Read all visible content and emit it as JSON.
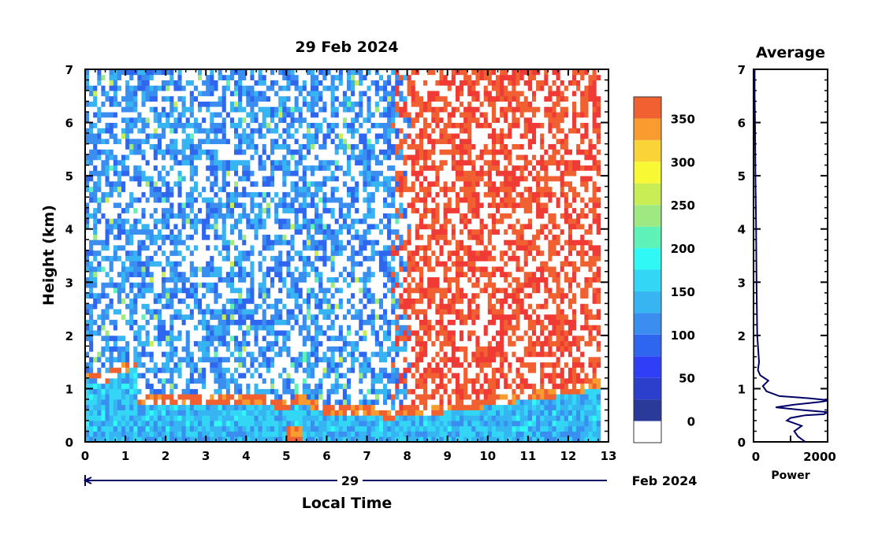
{
  "chart_data": [
    {
      "type": "heatmap",
      "title": "29 Feb 2024",
      "xlabel": "Local Time",
      "ylabel": "Height (km)",
      "xlim": [
        0,
        13
      ],
      "ylim": [
        0,
        7
      ],
      "x_ticks": [
        "0",
        "1",
        "2",
        "3",
        "4",
        "5",
        "6",
        "7",
        "8",
        "9",
        "10",
        "11",
        "12",
        "13"
      ],
      "y_ticks": [
        "0",
        "1",
        "2",
        "3",
        "4",
        "5",
        "6",
        "7"
      ],
      "date_bar": {
        "day": "29",
        "month_year": "Feb 2024"
      },
      "data_extent_hours": [
        0,
        12.8
      ],
      "colorbar": {
        "ticks": [
          "0",
          "50",
          "100",
          "150",
          "200",
          "250",
          "300",
          "350"
        ],
        "range": [
          -25,
          375
        ],
        "bins": [
          {
            "from": -25,
            "to": 0,
            "color": "#ffffff"
          },
          {
            "from": 0,
            "to": 25,
            "color": "#2a3a9a"
          },
          {
            "from": 25,
            "to": 50,
            "color": "#2c3fcc"
          },
          {
            "from": 50,
            "to": 75,
            "color": "#2f3ff5"
          },
          {
            "from": 75,
            "to": 100,
            "color": "#2f66ef"
          },
          {
            "from": 100,
            "to": 125,
            "color": "#3a8ef0"
          },
          {
            "from": 125,
            "to": 150,
            "color": "#37b4f2"
          },
          {
            "from": 150,
            "to": 175,
            "color": "#33d6f5"
          },
          {
            "from": 175,
            "to": 200,
            "color": "#30f8f4"
          },
          {
            "from": 200,
            "to": 225,
            "color": "#5ef2b8"
          },
          {
            "from": 225,
            "to": 250,
            "color": "#9ee982"
          },
          {
            "from": 250,
            "to": 275,
            "color": "#c9ee55"
          },
          {
            "from": 275,
            "to": 300,
            "color": "#f8f834"
          },
          {
            "from": 300,
            "to": 325,
            "color": "#f9d438"
          },
          {
            "from": 325,
            "to": 350,
            "color": "#f89c30"
          },
          {
            "from": 350,
            "to": 375,
            "color": "#f06030"
          },
          {
            "from": 375,
            "to": 400,
            "color": "#f03a35"
          }
        ]
      },
      "layer_top_km": {
        "x": [
          0,
          0.5,
          0.9,
          1.25,
          1.3,
          2.3,
          3.0,
          4.0,
          4.5,
          5.0,
          5.3,
          5.7,
          6.0,
          7.0,
          7.5,
          8.0,
          8.5,
          9.0,
          9.5,
          10.0,
          10.5,
          11.0,
          11.5,
          12.0,
          12.8
        ],
        "y": [
          1.3,
          1.25,
          1.4,
          1.5,
          0.8,
          0.8,
          0.8,
          0.82,
          0.8,
          0.72,
          0.85,
          0.75,
          0.62,
          0.65,
          0.55,
          0.6,
          0.62,
          0.68,
          0.7,
          0.8,
          0.85,
          0.9,
          0.95,
          1.0,
          1.15
        ]
      },
      "upper_regime": {
        "noisy_blue_until_hours": 7.5,
        "red_after_hours": 8.1
      }
    },
    {
      "type": "line",
      "title": "Average",
      "xlabel": "Power",
      "xlim": [
        0,
        2000
      ],
      "ylim": [
        0,
        7
      ],
      "x_ticks": [
        "0",
        "2000"
      ],
      "y_ticks": [
        "0",
        "1",
        "2",
        "3",
        "4",
        "5",
        "6",
        "7"
      ],
      "series": [
        {
          "x": [
            1400,
            1200,
            1100,
            1300,
            900,
            1000,
            1400,
            1900,
            2000,
            1300,
            600,
            1100,
            1800,
            2050,
            1500,
            700,
            350,
            250,
            400,
            180,
            120,
            150,
            100,
            80,
            70,
            50,
            40,
            30,
            30
          ],
          "y": [
            0.0,
            0.1,
            0.2,
            0.3,
            0.4,
            0.45,
            0.5,
            0.52,
            0.56,
            0.6,
            0.65,
            0.7,
            0.75,
            0.78,
            0.82,
            0.86,
            0.95,
            1.05,
            1.15,
            1.25,
            1.35,
            1.5,
            2.0,
            3.0,
            4.0,
            5.0,
            6.0,
            6.5,
            7.0
          ]
        }
      ]
    }
  ]
}
